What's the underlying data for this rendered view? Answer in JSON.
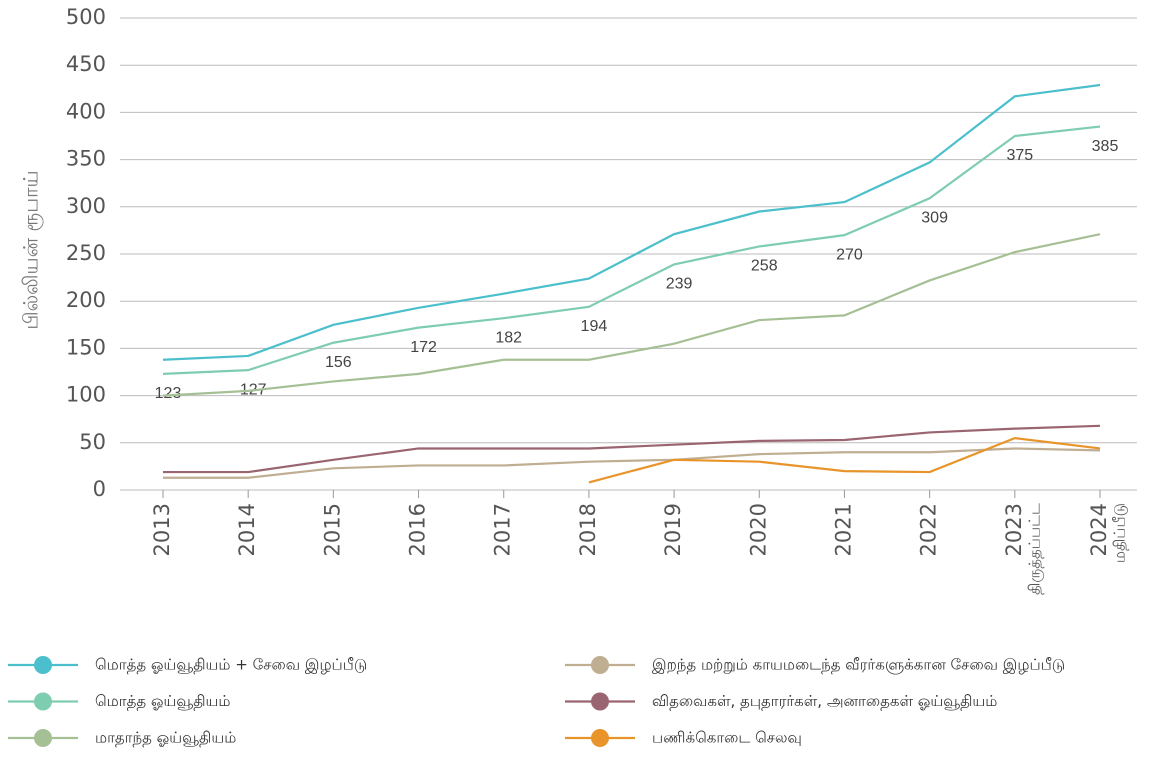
{
  "chart_data": {
    "type": "line",
    "y_label": "பில்லியன் ரூபாய்",
    "categories": [
      "2013",
      "2014",
      "2015",
      "2016",
      "2017",
      "2018",
      "2019",
      "2020",
      "2021",
      "2022",
      "2023",
      "2024"
    ],
    "category_sublabels": [
      null,
      null,
      null,
      null,
      null,
      null,
      null,
      null,
      null,
      null,
      "திருத்தப்பட்ட",
      "மதிப்பீடு"
    ],
    "ylim": [
      0,
      500
    ],
    "yticks": [
      0,
      50,
      100,
      150,
      200,
      250,
      300,
      350,
      400,
      450,
      500
    ],
    "grid": true,
    "series": [
      {
        "name": "மொத்த ஓய்வூதியம் + சேவை இழப்பீடு",
        "color": "#4bbfcc",
        "values": [
          138,
          142,
          175,
          193,
          208,
          224,
          271,
          295,
          305,
          347,
          417,
          429
        ]
      },
      {
        "name": "மொத்த ஓய்வூதியம்",
        "color": "#7fcdb0",
        "values": [
          123,
          127,
          156,
          172,
          182,
          194,
          239,
          258,
          270,
          309,
          375,
          385
        ],
        "value_labels": true
      },
      {
        "name": "மாதாந்த ஓய்வூதியம்",
        "color": "#a6c096",
        "values": [
          100,
          105,
          115,
          123,
          138,
          138,
          155,
          180,
          185,
          222,
          252,
          271
        ]
      },
      {
        "name": "இறந்த மற்றும் காயமடைந்த வீரர்களுக்கான சேவை இழப்பீடு",
        "color": "#bfae92",
        "values": [
          13,
          13,
          23,
          26,
          26,
          30,
          32,
          38,
          40,
          40,
          44,
          42
        ]
      },
      {
        "name": "விதவைகள், தபுதாரர்கள், அனாதைகள் ஓய்வூதியம்",
        "color": "#9a6470",
        "values": [
          19,
          19,
          32,
          44,
          44,
          44,
          48,
          52,
          53,
          61,
          65,
          68
        ]
      },
      {
        "name": "பணிக்கொடை செலவு",
        "color": "#e8942a",
        "values": [
          null,
          null,
          null,
          null,
          null,
          8,
          32,
          30,
          20,
          19,
          55,
          44
        ]
      }
    ]
  }
}
